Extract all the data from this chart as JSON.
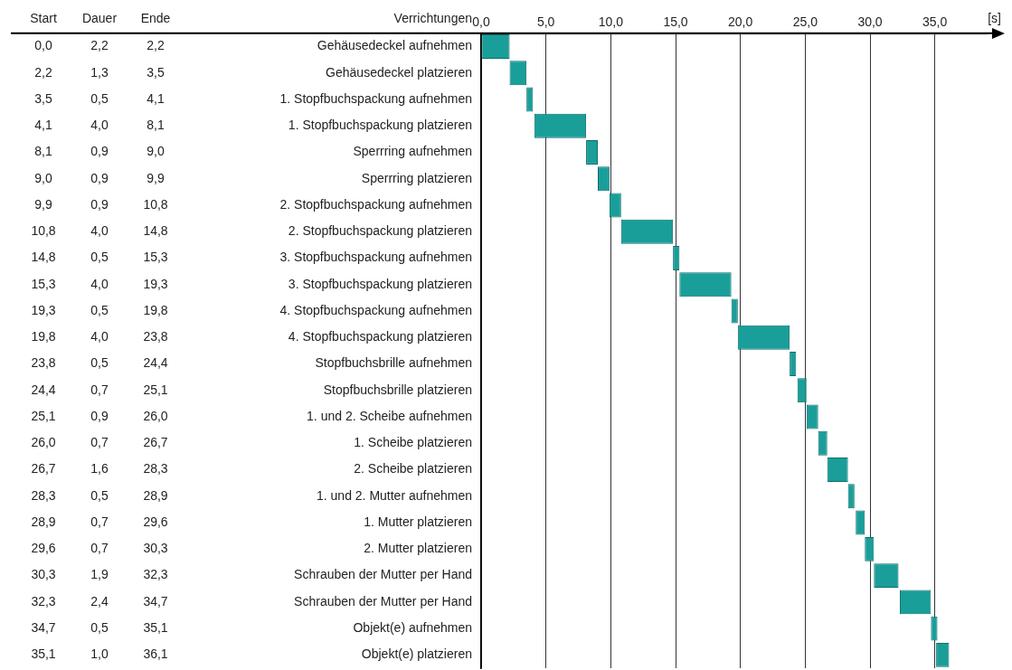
{
  "chart_data": {
    "type": "bar",
    "orientation": "horizontal",
    "xlabel": "[s]",
    "categories": [
      "Gehäusedeckel aufnehmen",
      "Gehäusedeckel platzieren",
      "1. Stopfbuchspackung aufnehmen",
      "1. Stopfbuchspackung platzieren",
      "Sperrring aufnehmen",
      "Sperrring platzieren",
      "2. Stopfbuchspackung aufnehmen",
      "2. Stopfbuchspackung platzieren",
      "3. Stopfbuchspackung aufnehmen",
      "3. Stopfbuchspackung platzieren",
      "4. Stopfbuchspackung aufnehmen",
      "4. Stopfbuchspackung platzieren",
      "Stopfbuchsbrille aufnehmen",
      "Stopfbuchsbrille platzieren",
      "1. und 2. Scheibe aufnehmen",
      "1. Scheibe platzieren",
      "2. Scheibe platzieren",
      "1. und 2. Mutter aufnehmen",
      "1. Mutter platzieren",
      "2. Mutter platzieren",
      "Schrauben der Mutter per Hand",
      "Schrauben der Mutter per Hand",
      "Objekt(e) aufnehmen",
      "Objekt(e) platzieren"
    ],
    "base": [
      0.0,
      2.2,
      3.5,
      4.1,
      8.1,
      9.0,
      9.9,
      10.8,
      14.8,
      15.3,
      19.3,
      19.8,
      23.8,
      24.4,
      25.1,
      26.0,
      26.7,
      28.3,
      28.9,
      29.6,
      30.3,
      32.3,
      34.7,
      35.1
    ],
    "values": [
      2.2,
      1.3,
      0.5,
      4.0,
      0.9,
      0.9,
      0.9,
      4.0,
      0.5,
      4.0,
      0.5,
      4.0,
      0.5,
      0.7,
      0.9,
      0.7,
      1.6,
      0.5,
      0.7,
      0.7,
      1.9,
      2.4,
      0.5,
      1.0
    ],
    "color": "#1a9e99",
    "xlim": [
      0,
      39
    ],
    "xticks": [
      {
        "value": 0,
        "label": "0,0"
      },
      {
        "value": 5,
        "label": "5,0"
      },
      {
        "value": 10,
        "label": "10,0"
      },
      {
        "value": 15,
        "label": "15,0"
      },
      {
        "value": 20,
        "label": "20,0"
      },
      {
        "value": 25,
        "label": "25,0"
      },
      {
        "value": 30,
        "label": "30,0"
      },
      {
        "value": 35,
        "label": "35,0"
      }
    ],
    "grid": "x",
    "annotations": [
      "Verrichtungen",
      "Start",
      "Dauer",
      "Ende",
      "0,0",
      "2,2",
      "2,2",
      "2,2",
      "1,3",
      "3,5",
      "3,5",
      "0,5",
      "4,1",
      "4,1",
      "4,0",
      "8,1",
      "8,1",
      "0,9",
      "9,0",
      "9,0",
      "0,9",
      "9,9",
      "9,9",
      "0,9",
      "10,8",
      "10,8",
      "4,0",
      "14,8",
      "14,8",
      "0,5",
      "15,3",
      "15,3",
      "4,0",
      "19,3",
      "19,3",
      "0,5",
      "19,8",
      "19,8",
      "4,0",
      "23,8",
      "23,8",
      "0,5",
      "24,4",
      "24,4",
      "0,7",
      "25,1",
      "25,1",
      "0,9",
      "26,0",
      "26,0",
      "0,7",
      "26,7",
      "26,7",
      "1,6",
      "28,3",
      "28,3",
      "0,5",
      "28,9",
      "28,9",
      "0,7",
      "29,6",
      "29,6",
      "0,7",
      "30,3",
      "30,3",
      "1,9",
      "32,3",
      "32,3",
      "2,4",
      "34,7",
      "34,7",
      "0,5",
      "35,1",
      "35,1",
      "1,0",
      "36,1"
    ]
  }
}
